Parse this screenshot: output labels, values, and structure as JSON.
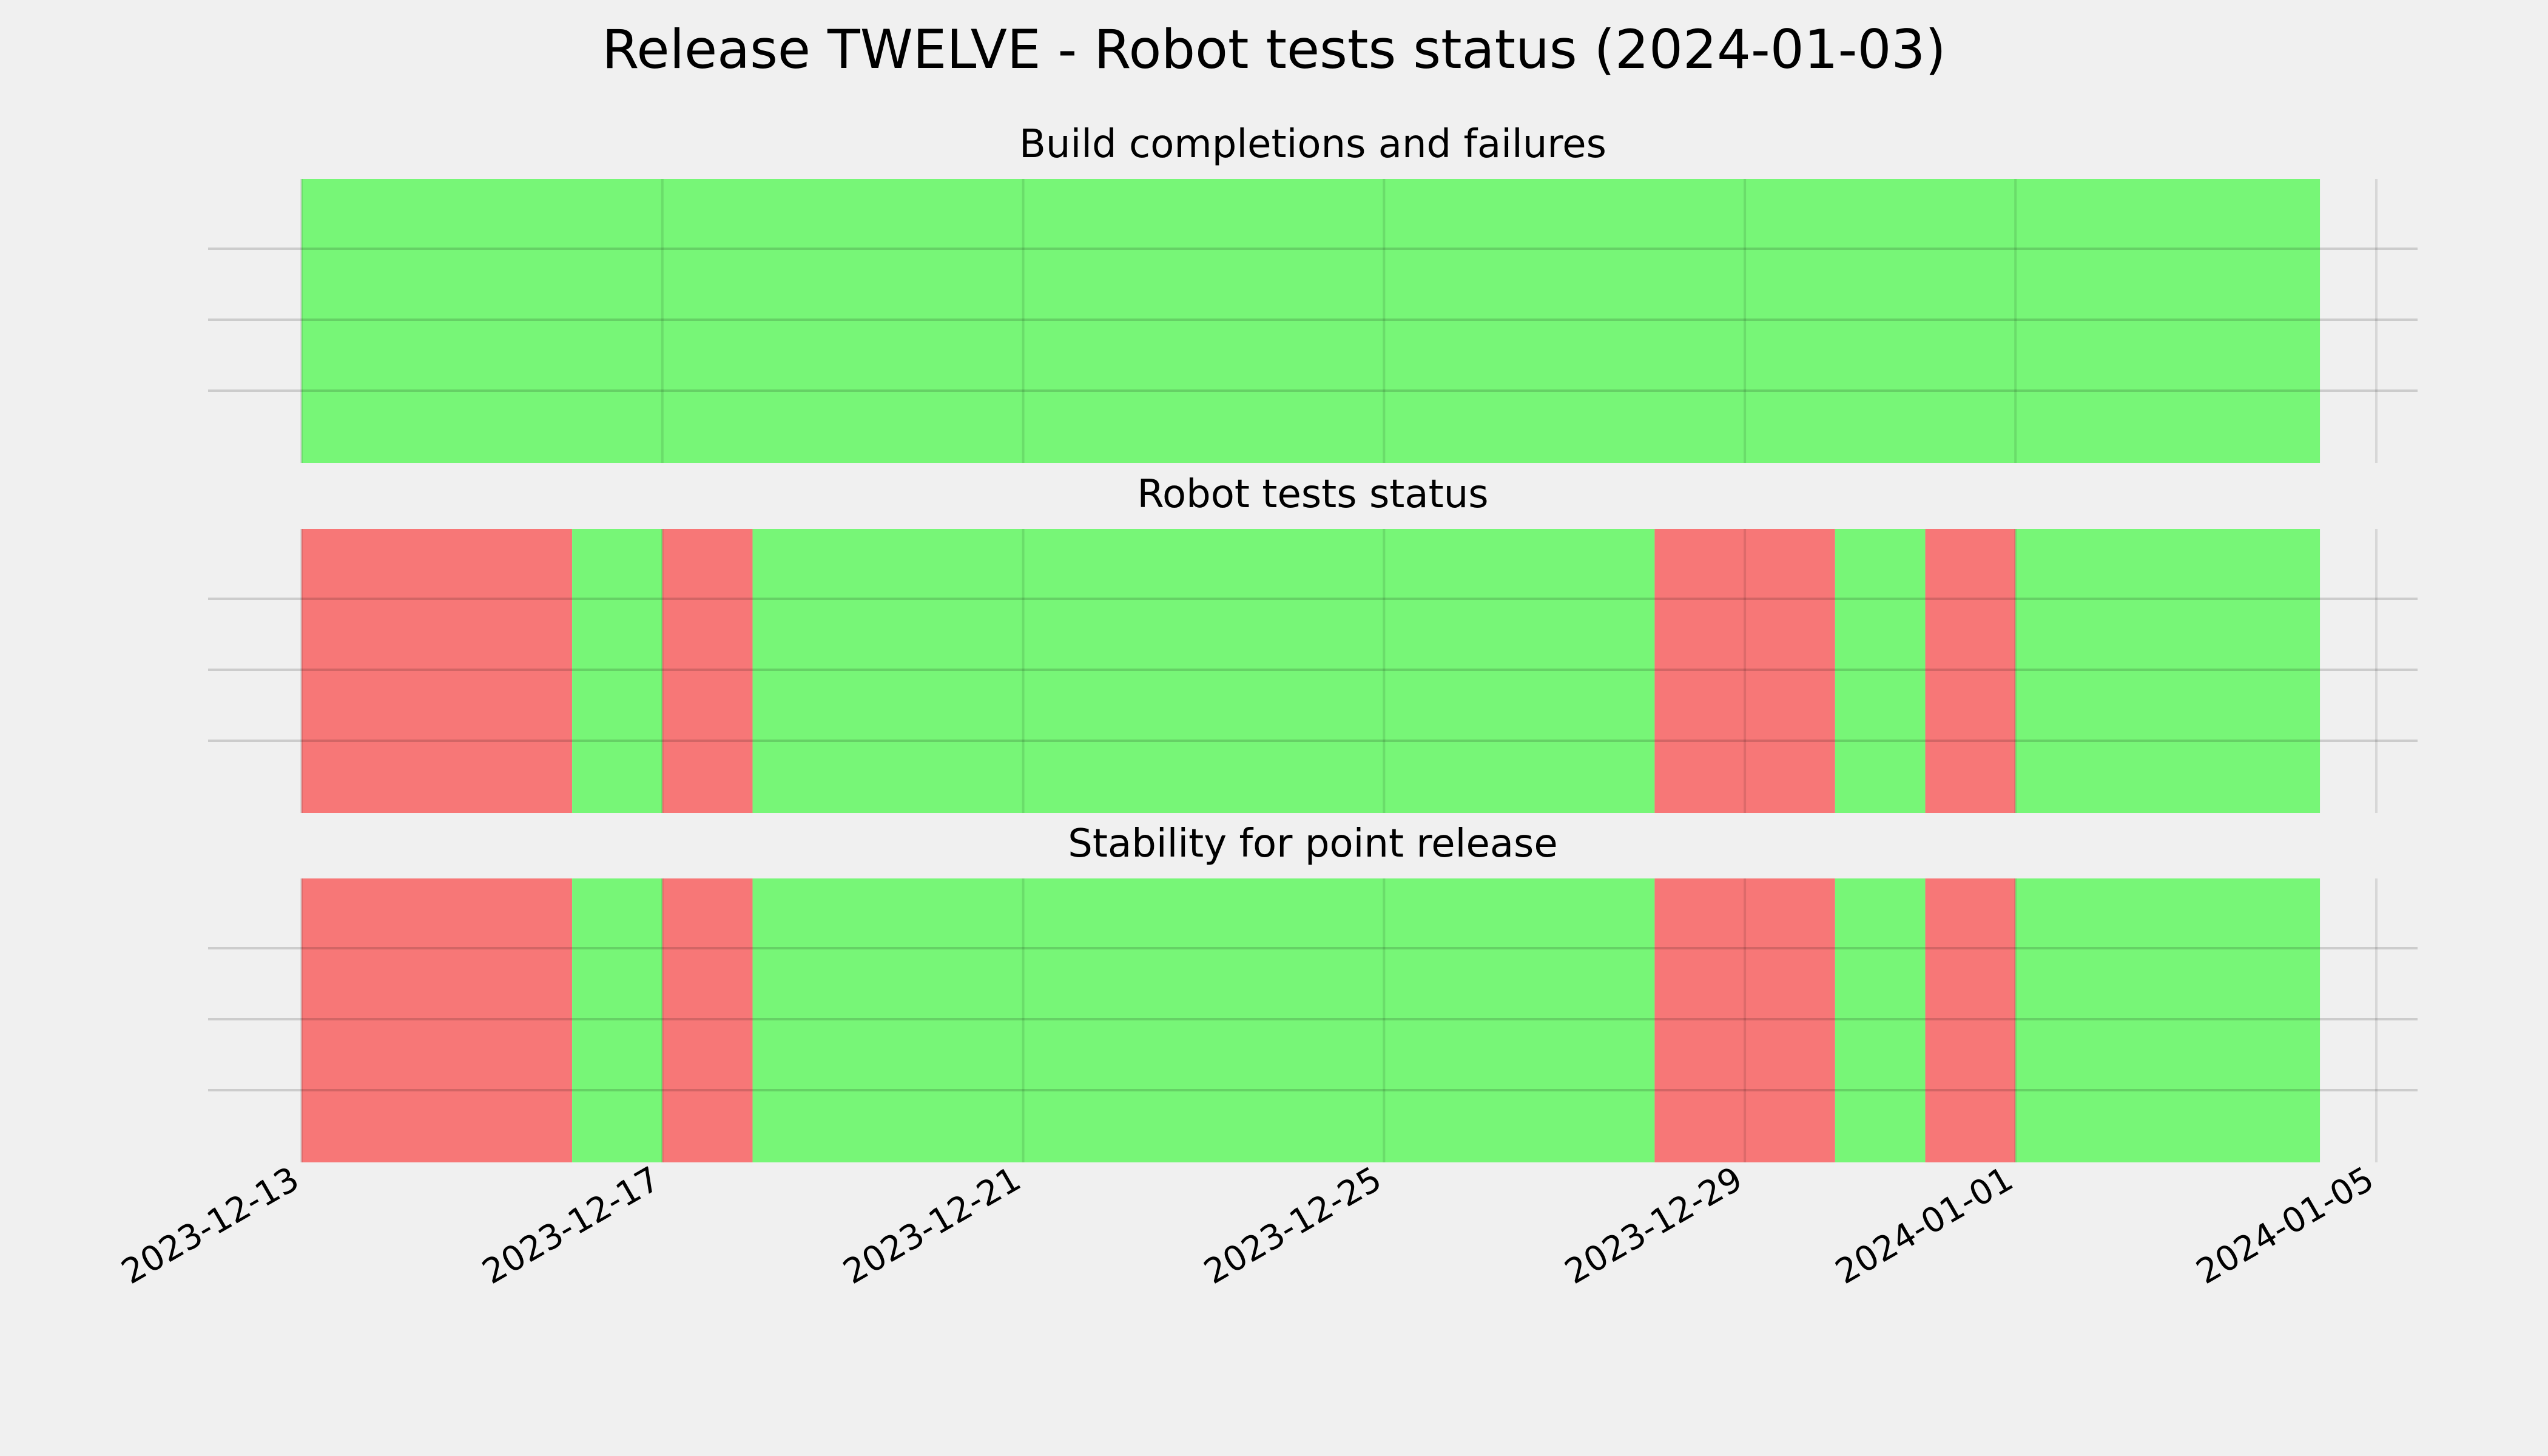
{
  "chart_data": {
    "type": "timeline",
    "title": "Release TWELVE - Robot tests status (2024-01-03)",
    "x_ticks": [
      "2023-12-13",
      "2023-12-17",
      "2023-12-21",
      "2023-12-25",
      "2023-12-29",
      "2024-01-01",
      "2024-01-05"
    ],
    "xlim": [
      "2023-12-13",
      "2024-01-05"
    ],
    "grid": true,
    "colors": {
      "pass": "#77f677",
      "fail": "#f77777",
      "background": "#f0f0f0",
      "grid": "#cbcbcb"
    },
    "panels": [
      {
        "title": "Build completions and failures",
        "segments": [
          {
            "start": "2023-12-13",
            "end": "2024-01-04T09:00",
            "status": "pass"
          }
        ]
      },
      {
        "title": "Robot tests status",
        "segments": [
          {
            "start": "2023-12-13",
            "end": "2023-12-16",
            "status": "fail"
          },
          {
            "start": "2023-12-16",
            "end": "2023-12-17",
            "status": "pass"
          },
          {
            "start": "2023-12-17",
            "end": "2023-12-18",
            "status": "fail"
          },
          {
            "start": "2023-12-18",
            "end": "2023-12-28",
            "status": "pass"
          },
          {
            "start": "2023-12-28",
            "end": "2023-12-30",
            "status": "fail"
          },
          {
            "start": "2023-12-30",
            "end": "2023-12-31",
            "status": "pass"
          },
          {
            "start": "2023-12-31",
            "end": "2024-01-01",
            "status": "fail"
          },
          {
            "start": "2024-01-01",
            "end": "2024-01-04T09:00",
            "status": "pass"
          }
        ]
      },
      {
        "title": "Stability for point release",
        "segments": [
          {
            "start": "2023-12-13",
            "end": "2023-12-16",
            "status": "fail"
          },
          {
            "start": "2023-12-16",
            "end": "2023-12-17",
            "status": "pass"
          },
          {
            "start": "2023-12-17",
            "end": "2023-12-18",
            "status": "fail"
          },
          {
            "start": "2023-12-18",
            "end": "2023-12-28",
            "status": "pass"
          },
          {
            "start": "2023-12-28",
            "end": "2023-12-30",
            "status": "fail"
          },
          {
            "start": "2023-12-30",
            "end": "2023-12-31",
            "status": "pass"
          },
          {
            "start": "2023-12-31",
            "end": "2024-01-01",
            "status": "fail"
          },
          {
            "start": "2024-01-01",
            "end": "2024-01-04T09:00",
            "status": "pass"
          }
        ]
      }
    ]
  }
}
